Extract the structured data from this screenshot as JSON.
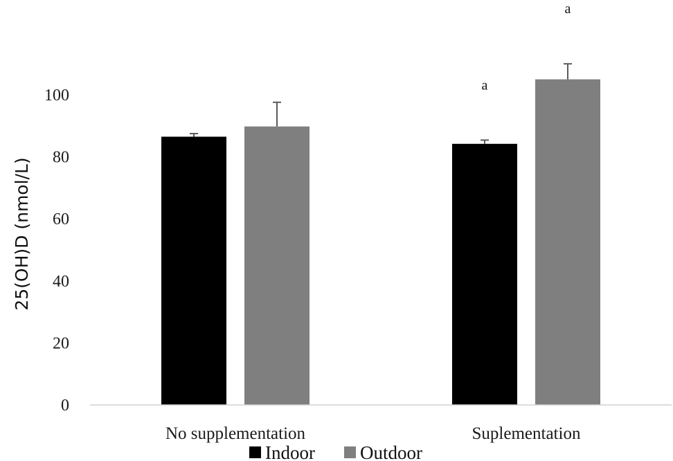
{
  "chart_data": {
    "type": "bar",
    "categories": [
      "No supplementation",
      "Suplementation"
    ],
    "series": [
      {
        "name": "Indoor",
        "color": "#000000",
        "values": [
          86.5,
          84.2
        ],
        "errors": [
          1.0,
          1.2
        ]
      },
      {
        "name": "Outdoor",
        "color": "#7f7f7f",
        "values": [
          89.8,
          105.0
        ],
        "errors": [
          7.8,
          5.0
        ]
      }
    ],
    "annotations": [
      {
        "series": 0,
        "category": 1,
        "text": "a"
      },
      {
        "series": 1,
        "category": 1,
        "text": "a"
      }
    ],
    "ylabel": "25(OH)D (nmol/L)",
    "xlabel": "",
    "title": "",
    "ylim": [
      0,
      100
    ],
    "yticks": [
      0,
      20,
      40,
      60,
      80,
      100
    ],
    "grid": false,
    "legend": "bottom"
  }
}
